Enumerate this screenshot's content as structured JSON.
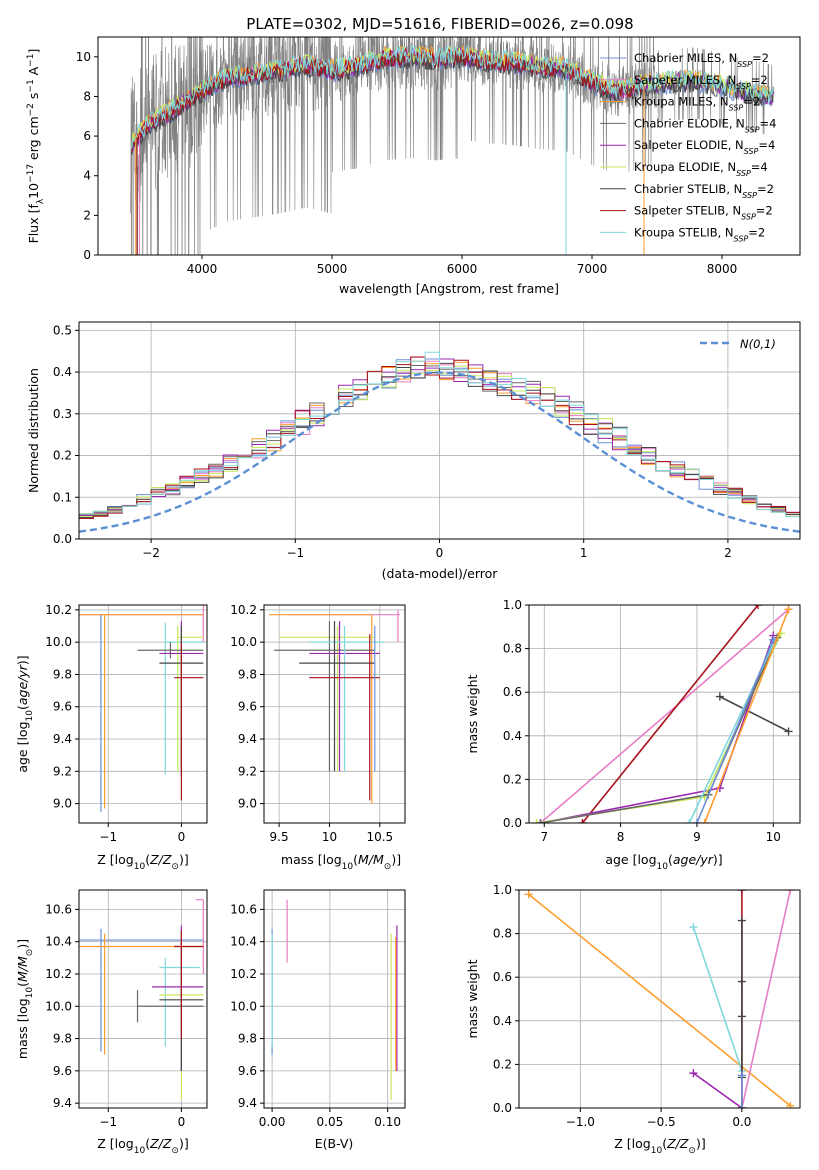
{
  "figure": {
    "title": "PLATE=0302, MJD=51616, FIBERID=0026, z=0.098"
  },
  "colors": {
    "chabrier_miles": "#6b8fd6",
    "salpeter_miles": "#e87cc5",
    "kroupa_miles": "#ff9d2e",
    "chabrier_elodie": "#6a6a6a",
    "salpeter_elodie": "#9b27b0",
    "kroupa_elodie": "#c9e85a",
    "chabrier_stelib": "#454545",
    "salpeter_stelib": "#a8121d",
    "kroupa_stelib": "#7fd8dc",
    "data": "#808080",
    "normal": "#5b8fd6"
  },
  "chart_data": [
    {
      "id": "spectrum",
      "type": "line",
      "xlabel": "wavelength [Angstrom, rest frame]",
      "ylabel": "Flux [f_λ 10^-17 erg cm^-2 s^-1 A^-1]",
      "xlim": [
        3200,
        8600
      ],
      "ylim": [
        0,
        11
      ],
      "xticks": [
        4000,
        5000,
        6000,
        7000,
        8000
      ],
      "yticks": [
        0,
        2,
        4,
        6,
        8,
        10
      ],
      "grid": false,
      "legend_position": "top-right",
      "series": [
        {
          "name": "Chabrier MILES, N_SSP=2",
          "label": "Chabrier MILES, N",
          "sub": "SSP",
          "tail": "=2",
          "color_key": "chabrier_miles"
        },
        {
          "name": "Salpeter MILES, N_SSP=2",
          "label": "Salpeter MILES, N",
          "sub": "SSP",
          "tail": "=2",
          "color_key": "salpeter_miles"
        },
        {
          "name": "Kroupa MILES, N_SSP=2",
          "label": "Kroupa MILES, N",
          "sub": "SSP",
          "tail": "=2",
          "color_key": "kroupa_miles"
        },
        {
          "name": "Chabrier ELODIE, N_SSP=4",
          "label": "Chabrier ELODIE, N",
          "sub": "SSP",
          "tail": "=4",
          "color_key": "chabrier_elodie"
        },
        {
          "name": "Salpeter ELODIE, N_SSP=4",
          "label": "Salpeter ELODIE, N",
          "sub": "SSP",
          "tail": "=4",
          "color_key": "salpeter_elodie"
        },
        {
          "name": "Kroupa ELODIE, N_SSP=4",
          "label": "Kroupa ELODIE, N",
          "sub": "SSP",
          "tail": "=4",
          "color_key": "kroupa_elodie"
        },
        {
          "name": "Chabrier STELIB, N_SSP=2",
          "label": "Chabrier STELIB, N",
          "sub": "SSP",
          "tail": "=2",
          "color_key": "chabrier_stelib"
        },
        {
          "name": "Salpeter STELIB, N_SSP=2",
          "label": "Salpeter STELIB, N",
          "sub": "SSP",
          "tail": "=2",
          "color_key": "salpeter_stelib"
        },
        {
          "name": "Kroupa STELIB, N_SSP=2",
          "label": "Kroupa STELIB, N",
          "sub": "SSP",
          "tail": "=2",
          "color_key": "kroupa_stelib"
        }
      ],
      "continuum": {
        "x": [
          3450,
          3600,
          3800,
          4000,
          4200,
          4400,
          4600,
          4800,
          5000,
          5200,
          5400,
          5600,
          5800,
          6000,
          6200,
          6400,
          6600,
          6800,
          7000,
          7200,
          7400,
          7600,
          7800,
          8000,
          8200,
          8400
        ],
        "y": [
          5.6,
          6.6,
          7.4,
          8.3,
          8.9,
          9.1,
          9.3,
          9.6,
          9.3,
          9.5,
          9.9,
          10.0,
          9.9,
          10.0,
          9.8,
          9.7,
          9.5,
          9.4,
          8.7,
          8.2,
          8.6,
          8.7,
          8.8,
          8.5,
          8.2,
          7.9
        ]
      },
      "data_spikes_range": [
        3450,
        8400
      ]
    },
    {
      "id": "residuals",
      "type": "histogram",
      "xlabel": "(data-model)/error",
      "ylabel": "Normed distribution",
      "xlim": [
        -2.5,
        2.5
      ],
      "ylim": [
        0,
        0.52
      ],
      "xticks": [
        -2,
        -1,
        0,
        1,
        2
      ],
      "yticks": [
        0.0,
        0.1,
        0.2,
        0.3,
        0.4,
        0.5
      ],
      "grid": true,
      "legend": {
        "label": "N(0,1)",
        "position": "top-right"
      },
      "bin_width": 0.1,
      "base_values": [
        0.02,
        0.025,
        0.03,
        0.035,
        0.04,
        0.045,
        0.05,
        0.055,
        0.06,
        0.07,
        0.08,
        0.095,
        0.11,
        0.12,
        0.135,
        0.15,
        0.165,
        0.18,
        0.2,
        0.22,
        0.24,
        0.26,
        0.28,
        0.3,
        0.32,
        0.34,
        0.36,
        0.38,
        0.39,
        0.4,
        0.41,
        0.42,
        0.41,
        0.4,
        0.39,
        0.38,
        0.37,
        0.36,
        0.35,
        0.34,
        0.32,
        0.3,
        0.28,
        0.26,
        0.24,
        0.22,
        0.2,
        0.18,
        0.165,
        0.15,
        0.135,
        0.12,
        0.11,
        0.095,
        0.08,
        0.07,
        0.06,
        0.055,
        0.05,
        0.045,
        0.04,
        0.035,
        0.03,
        0.025,
        0.02
      ]
    },
    {
      "id": "age_vs_Z",
      "type": "errorbar",
      "xlabel": "Z [log10(Z/Z☉)]",
      "ylabel": "age [log10(age/yr)]",
      "xlim": [
        -1.4,
        0.35
      ],
      "ylim": [
        8.88,
        10.23
      ],
      "xticks": [
        -1,
        0
      ],
      "yticks": [
        9.0,
        9.2,
        9.4,
        9.6,
        9.8,
        10.0,
        10.2
      ],
      "grid": true
    },
    {
      "id": "age_vs_mass",
      "type": "errorbar",
      "xlabel": "mass [log10(M/M☉)]",
      "xlim": [
        9.35,
        10.75
      ],
      "ylim": [
        8.88,
        10.23
      ],
      "xticks": [
        9.5,
        10.0,
        10.5
      ],
      "yticks": [
        9.0,
        9.2,
        9.4,
        9.6,
        9.8,
        10.0,
        10.2
      ],
      "grid": true
    },
    {
      "id": "weight_vs_age",
      "type": "line",
      "xlabel": "age [log10(age/yr)]",
      "ylabel": "mass weight",
      "xlim": [
        6.8,
        10.35
      ],
      "ylim": [
        0,
        1
      ],
      "xticks": [
        7,
        8,
        9,
        10
      ],
      "yticks": [
        0.0,
        0.2,
        0.4,
        0.6,
        0.8,
        1.0
      ],
      "grid": true
    },
    {
      "id": "mass_vs_Z",
      "type": "errorbar",
      "xlabel": "Z [log10(Z/Z☉)]",
      "ylabel": "mass [log10(M/M☉)]",
      "xlim": [
        -1.4,
        0.35
      ],
      "ylim": [
        9.37,
        10.72
      ],
      "xticks": [
        -1,
        0
      ],
      "yticks": [
        9.4,
        9.6,
        9.8,
        10.0,
        10.2,
        10.4,
        10.6
      ],
      "grid": true
    },
    {
      "id": "mass_vs_ebv",
      "type": "errorbar",
      "xlabel": "E(B-V)",
      "xlim": [
        -0.007,
        0.115
      ],
      "ylim": [
        9.37,
        10.72
      ],
      "xticks": [
        0.0,
        0.05,
        0.1
      ],
      "xtick_labels": [
        "0.00",
        "0.05",
        "0.10"
      ],
      "yticks": [
        9.4,
        9.6,
        9.8,
        10.0,
        10.2,
        10.4,
        10.6
      ],
      "grid": true
    },
    {
      "id": "weight_vs_Z",
      "type": "line",
      "xlabel": "Z [log10(Z/Z☉)]",
      "ylabel": "mass weight",
      "xlim": [
        -1.38,
        0.36
      ],
      "ylim": [
        0,
        1
      ],
      "xticks": [
        -1.0,
        -0.5,
        0.0
      ],
      "xtick_labels": [
        "−1.0",
        "−0.5",
        "0.0"
      ],
      "yticks": [
        0.0,
        0.2,
        0.4,
        0.6,
        0.8,
        1.0
      ],
      "grid": true
    }
  ]
}
